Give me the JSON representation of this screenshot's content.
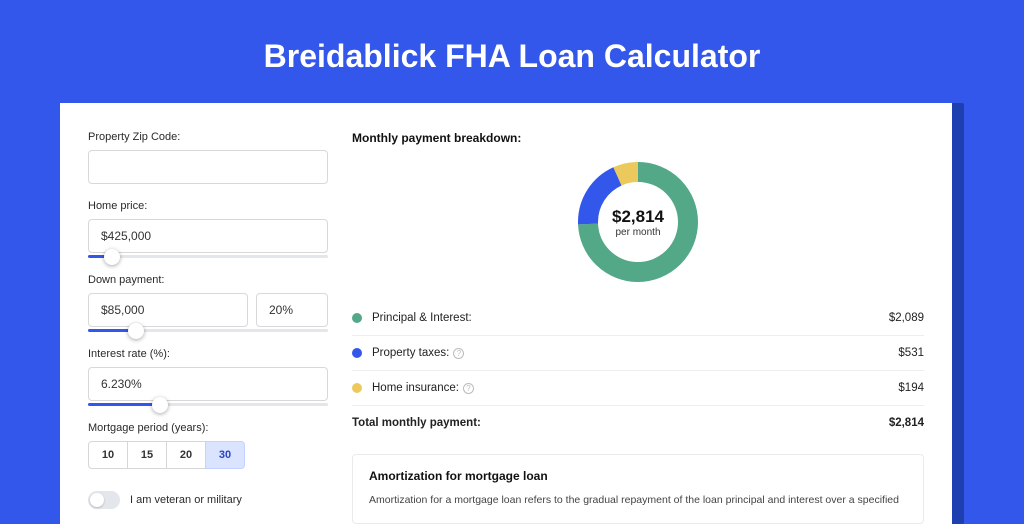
{
  "page": {
    "title": "Breidablick FHA Loan Calculator"
  },
  "colors": {
    "page_bg": "#3357ea",
    "shadow": "#1e3fb0",
    "card_bg": "#ffffff",
    "accent": "#3357ea",
    "series": {
      "principal": "#52a887",
      "taxes": "#3357ea",
      "insurance": "#ecc95d"
    }
  },
  "form": {
    "zip": {
      "label": "Property Zip Code:",
      "value": ""
    },
    "price": {
      "label": "Home price:",
      "value": "$425,000",
      "slider_pct": 10
    },
    "down": {
      "label": "Down payment:",
      "value": "$85,000",
      "pct_value": "20%",
      "slider_pct": 20
    },
    "rate": {
      "label": "Interest rate (%):",
      "value": "6.230%",
      "slider_pct": 30
    },
    "period": {
      "label": "Mortgage period (years):",
      "options": [
        "10",
        "15",
        "20",
        "30"
      ],
      "selected": "30"
    },
    "veteran": {
      "label": "I am veteran or military",
      "checked": false
    }
  },
  "breakdown": {
    "title": "Monthly payment breakdown:",
    "donut": {
      "amount": "$2,814",
      "sub": "per month",
      "slices": [
        {
          "key": "principal",
          "value": 2089,
          "color": "#52a887"
        },
        {
          "key": "taxes",
          "value": 531,
          "color": "#3357ea"
        },
        {
          "key": "insurance",
          "value": 194,
          "color": "#ecc95d"
        }
      ],
      "stroke_width": 20,
      "radius": 50
    },
    "items": [
      {
        "dot": "#52a887",
        "label": "Principal & Interest:",
        "info": false,
        "value": "$2,089"
      },
      {
        "dot": "#3357ea",
        "label": "Property taxes:",
        "info": true,
        "value": "$531"
      },
      {
        "dot": "#ecc95d",
        "label": "Home insurance:",
        "info": true,
        "value": "$194"
      }
    ],
    "total": {
      "label": "Total monthly payment:",
      "value": "$2,814"
    }
  },
  "amort": {
    "title": "Amortization for mortgage loan",
    "text": "Amortization for a mortgage loan refers to the gradual repayment of the loan principal and interest over a specified"
  }
}
